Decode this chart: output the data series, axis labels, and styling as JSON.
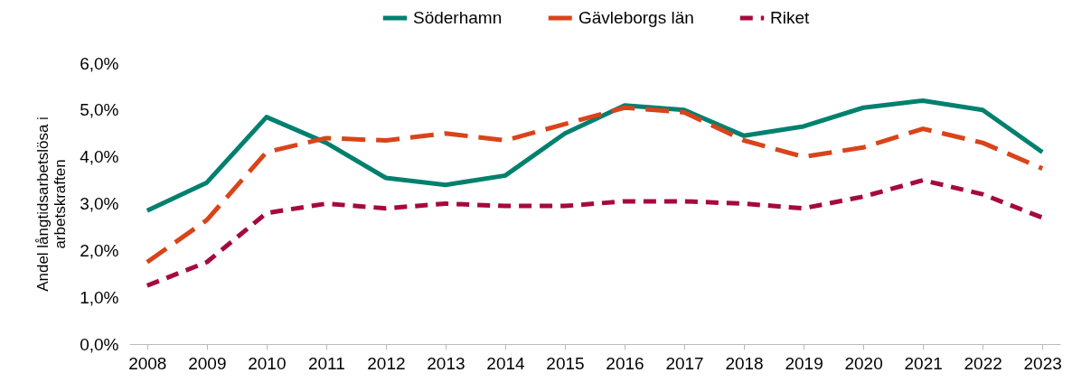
{
  "chart_data": {
    "type": "line",
    "ylabel": "Andel långtidsarbetslösa i\narbetskraften",
    "categories": [
      "2008",
      "2009",
      "2010",
      "2011",
      "2012",
      "2013",
      "2014",
      "2015",
      "2016",
      "2017",
      "2018",
      "2019",
      "2020",
      "2021",
      "2022",
      "2023"
    ],
    "series": [
      {
        "name": "Söderhamn",
        "color": "#00806e",
        "line_style": "solid",
        "values": [
          2.85,
          3.45,
          4.85,
          4.3,
          3.55,
          3.4,
          3.6,
          4.5,
          5.1,
          5.0,
          4.45,
          4.65,
          5.05,
          5.2,
          5.0,
          4.1
        ]
      },
      {
        "name": "Gävleborgs län",
        "color": "#d9441a",
        "line_style": "dashed",
        "values": [
          1.75,
          2.65,
          4.1,
          4.4,
          4.35,
          4.5,
          4.35,
          4.7,
          5.05,
          4.95,
          4.35,
          4.0,
          4.2,
          4.6,
          4.3,
          3.75
        ]
      },
      {
        "name": "Riket",
        "color": "#a6093d",
        "line_style": "dotted",
        "values": [
          1.25,
          1.75,
          2.8,
          3.0,
          2.9,
          3.0,
          2.95,
          2.95,
          3.05,
          3.05,
          3.0,
          2.9,
          3.15,
          3.5,
          3.2,
          2.7
        ]
      }
    ],
    "ylim": [
      0,
      6
    ],
    "yticks": [
      {
        "value": 0,
        "label": "0,0%"
      },
      {
        "value": 1,
        "label": "1,0%"
      },
      {
        "value": 2,
        "label": "2,0%"
      },
      {
        "value": 3,
        "label": "3,0%"
      },
      {
        "value": 4,
        "label": "4,0%"
      },
      {
        "value": 5,
        "label": "5,0%"
      },
      {
        "value": 6,
        "label": "6,0%"
      }
    ],
    "grid": false,
    "legend": "top",
    "marker": "none"
  }
}
